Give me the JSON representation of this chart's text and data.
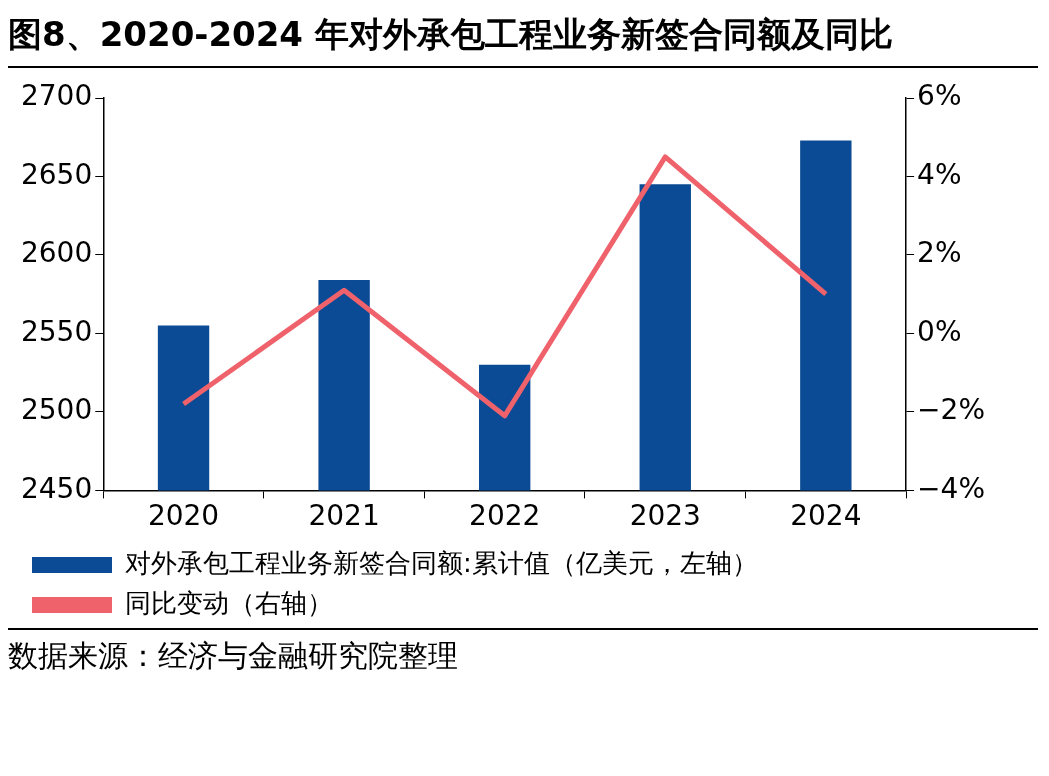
{
  "chart_data": {
    "type": "bar",
    "title": "图8、2020-2024 年对外承包工程业务新签合同额及同比",
    "categories": [
      "2020",
      "2021",
      "2022",
      "2023",
      "2024"
    ],
    "series": [
      {
        "name": "对外承包工程业务新签合同额:累计值（亿美元，左轴）",
        "color": "#0b4a94",
        "values": [
          2555,
          2584,
          2530,
          2645,
          2673
        ]
      },
      {
        "name": "同比变动（右轴）",
        "type": "line",
        "axis": "y2",
        "color": "#f0626b",
        "values": [
          -1.8,
          1.1,
          -2.1,
          4.5,
          1.0
        ]
      }
    ],
    "ylim": [
      2450,
      2700
    ],
    "yticks": [
      2450,
      2500,
      2550,
      2600,
      2650,
      2700
    ],
    "y2lim": [
      -4,
      6
    ],
    "y2ticks": [
      {
        "value": -4,
        "label": "−4%"
      },
      {
        "value": -2,
        "label": "−2%"
      },
      {
        "value": 0,
        "label": "0%"
      },
      {
        "value": 2,
        "label": "2%"
      },
      {
        "value": 4,
        "label": "4%"
      },
      {
        "value": 6,
        "label": "6%"
      }
    ],
    "grid": false,
    "legend": "bottom",
    "marker": "none",
    "annotations": [
      "数据来源：经济与金融研究院整理"
    ]
  }
}
